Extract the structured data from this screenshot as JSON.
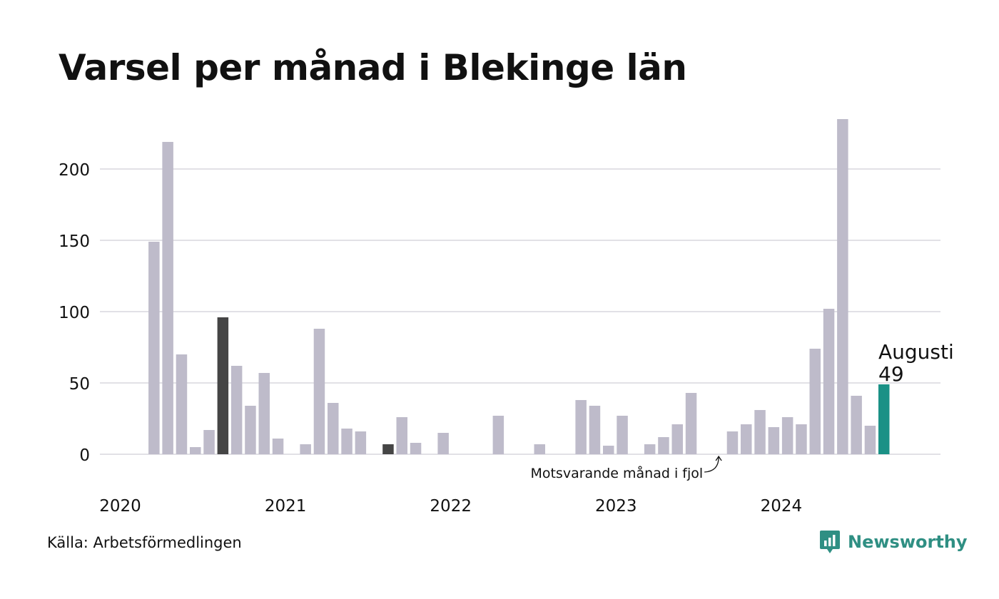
{
  "title": "Varsel per månad i Blekinge län",
  "source": "Källa: Arbetsförmedlingen",
  "brand": {
    "name": "Newsworthy",
    "color": "#2f8f83"
  },
  "chart_data": {
    "type": "bar",
    "title": "Varsel per månad i Blekinge län",
    "ylim": [
      0,
      235
    ],
    "grid": true,
    "yticks": [
      0,
      50,
      100,
      150,
      200
    ],
    "xtick_labels": [
      "2020",
      "2021",
      "2022",
      "2023",
      "2024"
    ],
    "colors": {
      "default": "#bebbca",
      "same_month_previous_years": "#454545",
      "current": "#1a9186"
    },
    "categories": [
      "2020-01",
      "2020-02",
      "2020-03",
      "2020-04",
      "2020-05",
      "2020-06",
      "2020-07",
      "2020-08",
      "2020-09",
      "2020-10",
      "2020-11",
      "2020-12",
      "2021-01",
      "2021-02",
      "2021-03",
      "2021-04",
      "2021-05",
      "2021-06",
      "2021-07",
      "2021-08",
      "2021-09",
      "2021-10",
      "2021-11",
      "2021-12",
      "2022-01",
      "2022-02",
      "2022-03",
      "2022-04",
      "2022-05",
      "2022-06",
      "2022-07",
      "2022-08",
      "2022-09",
      "2022-10",
      "2022-11",
      "2022-12",
      "2023-01",
      "2023-02",
      "2023-03",
      "2023-04",
      "2023-05",
      "2023-06",
      "2023-07",
      "2023-08",
      "2023-09",
      "2023-10",
      "2023-11",
      "2023-12",
      "2024-01",
      "2024-02",
      "2024-03",
      "2024-04",
      "2024-05",
      "2024-06",
      "2024-07",
      "2024-08"
    ],
    "values": [
      0,
      0,
      149,
      219,
      70,
      5,
      17,
      96,
      62,
      34,
      57,
      11,
      0,
      7,
      88,
      36,
      18,
      16,
      0,
      7,
      26,
      8,
      0,
      15,
      0,
      0,
      0,
      27,
      0,
      0,
      7,
      0,
      0,
      38,
      34,
      6,
      27,
      0,
      7,
      12,
      21,
      43,
      0,
      0,
      16,
      21,
      31,
      19,
      26,
      21,
      74,
      102,
      235,
      41,
      20,
      49
    ],
    "highlight_indices": [
      7,
      19,
      31,
      43
    ],
    "current_index": 55,
    "annotations": {
      "current_label": "Augusti",
      "current_value": "49",
      "previous_year_note": "Motsvarande månad i fjol"
    }
  }
}
